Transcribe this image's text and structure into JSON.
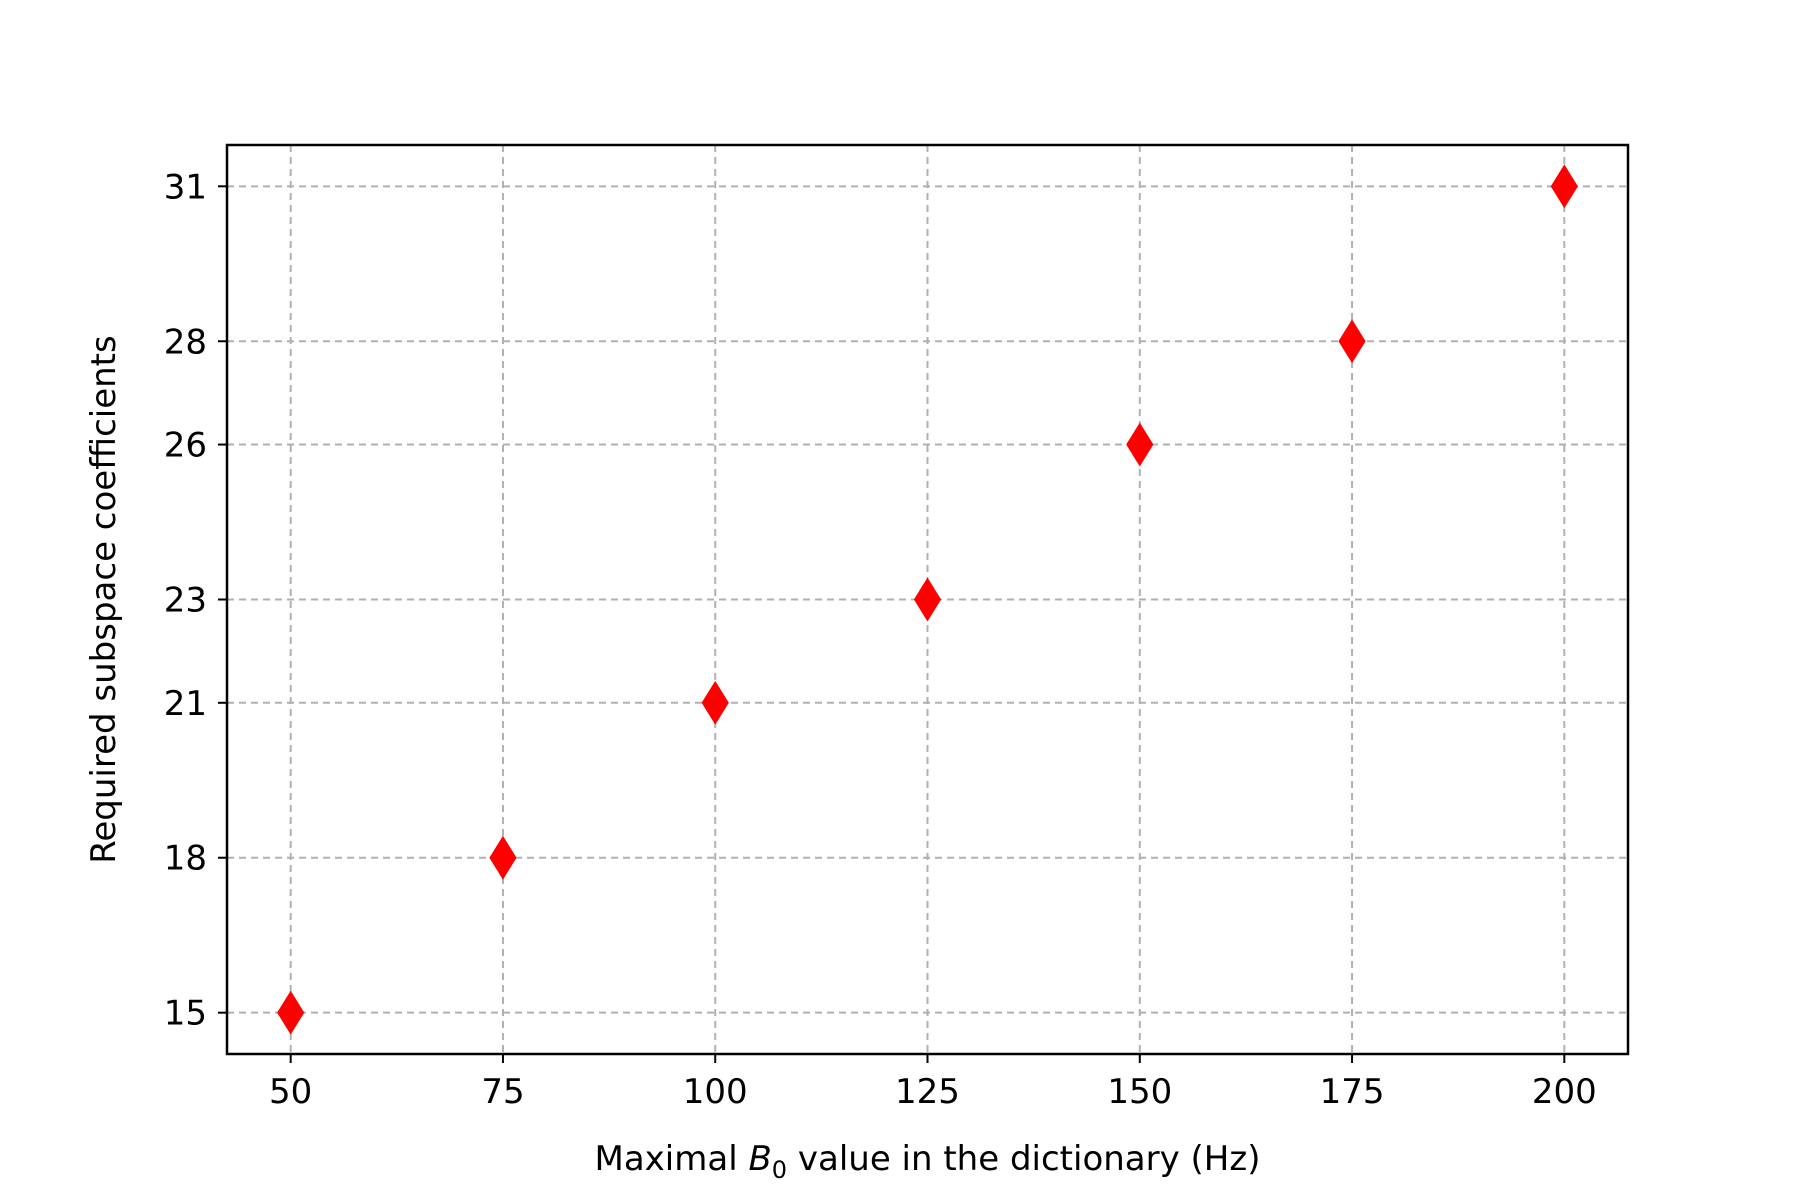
{
  "chart_data": {
    "type": "scatter",
    "x": [
      50,
      75,
      100,
      125,
      150,
      175,
      200
    ],
    "y": [
      15,
      18,
      21,
      23,
      26,
      28,
      31
    ],
    "xticks": [
      50,
      75,
      100,
      125,
      150,
      175,
      200
    ],
    "yticks": [
      15,
      18,
      21,
      23,
      26,
      28,
      31
    ],
    "xlim": [
      42.5,
      207.5
    ],
    "ylim": [
      14.2,
      31.8
    ],
    "xlabel_parts": {
      "before": "Maximal ",
      "var": "B",
      "sub": "0",
      "after": " value in the dictionary (Hz)"
    },
    "ylabel": "Required subspace coefficients",
    "marker": "diamond",
    "marker_color": "#ff0000",
    "grid": true,
    "grid_style": "dashed"
  }
}
